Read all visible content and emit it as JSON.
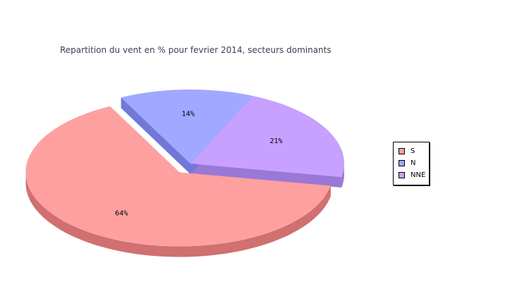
{
  "chart_data": {
    "type": "pie",
    "title": "Repartition du vent en % pour fevrier 2014, secteurs dominants",
    "legend_position": "right",
    "style": "3d-exploded",
    "slices": [
      {
        "label": "S",
        "value": 64,
        "display": "64%",
        "color": "#ffa0a0",
        "side_color": "#d07070",
        "exploded": true
      },
      {
        "label": "N",
        "value": 14,
        "display": "14%",
        "color": "#a0a8ff",
        "side_color": "#7078d8",
        "exploded": false
      },
      {
        "label": "NNE",
        "value": 21,
        "display": "21%",
        "color": "#c8a0ff",
        "side_color": "#9a78d8",
        "exploded": false
      }
    ]
  }
}
